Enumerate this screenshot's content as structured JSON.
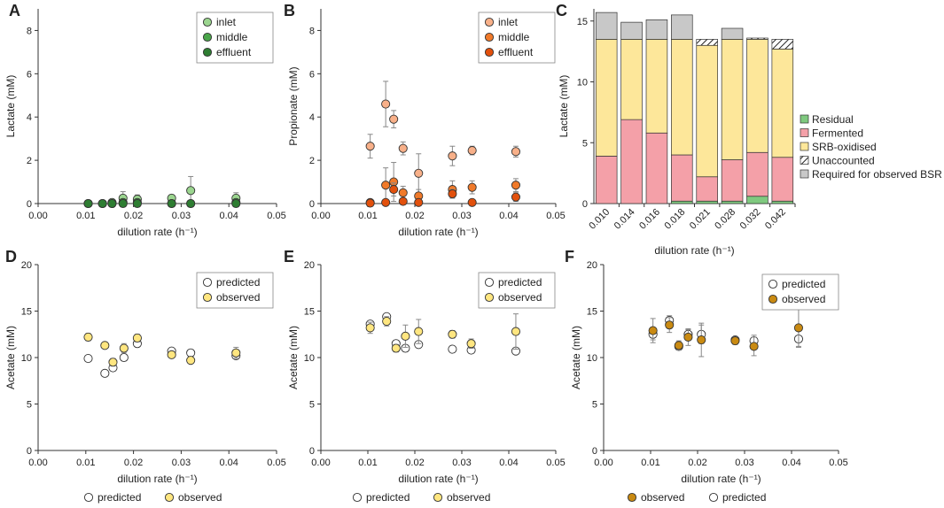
{
  "colors": {
    "inlet_lac": "#9bd58f",
    "middle_lac": "#4aa54a",
    "effluent_lac": "#2e7d32",
    "inlet_prop": "#f8b089",
    "middle_prop": "#f07a2a",
    "effluent_prop": "#e2500c",
    "residual": "#7fc97f",
    "fermented": "#f4a0a8",
    "srb": "#fde79a",
    "required": "#c8c8c8",
    "observed_de": "#ffe680",
    "observed_f": "#c98a12",
    "predicted": "#ffffff"
  },
  "chart_data": [
    {
      "id": "A",
      "letter": "A",
      "type": "scatter",
      "xlabel": "dilution rate (h⁻¹)",
      "ylabel": "Lactate (mM)",
      "xlim": [
        0,
        0.05
      ],
      "ylim": [
        0,
        9
      ],
      "xticks": [
        "0.00",
        "0.01",
        "0.02",
        "0.03",
        "0.04",
        "0.05"
      ],
      "yticks": [
        "0",
        "2",
        "4",
        "6",
        "8"
      ],
      "legend": {
        "position": "top-right",
        "entries": [
          "inlet",
          "middle",
          "effluent"
        ]
      },
      "series": [
        {
          "name": "inlet",
          "color": "inlet_lac",
          "x": [
            0.0105,
            0.0135,
            0.0155,
            0.0178,
            0.0208,
            0.028,
            0.032,
            0.0415
          ],
          "y": [
            0.0,
            0.0,
            0.05,
            0.25,
            0.2,
            0.25,
            0.6,
            0.25
          ],
          "err": [
            0,
            0,
            0.05,
            0.3,
            0.2,
            0.15,
            0.65,
            0.25
          ]
        },
        {
          "name": "middle",
          "color": "middle_lac",
          "x": [
            0.0105,
            0.0135,
            0.0155,
            0.0178,
            0.0208,
            0.028,
            0.032,
            0.0415
          ],
          "y": [
            0.0,
            0.0,
            0.0,
            0.05,
            0.05,
            0.0,
            0.0,
            0.05
          ],
          "err": [
            0,
            0,
            0,
            0.05,
            0.05,
            0,
            0,
            0.05
          ]
        },
        {
          "name": "effluent",
          "color": "effluent_lac",
          "x": [
            0.0105,
            0.0135,
            0.0155,
            0.0178,
            0.0208,
            0.028,
            0.032,
            0.0415
          ],
          "y": [
            0,
            0,
            0,
            0,
            0,
            0,
            0,
            0
          ],
          "err": [
            0,
            0,
            0,
            0,
            0,
            0,
            0,
            0
          ]
        }
      ]
    },
    {
      "id": "B",
      "letter": "B",
      "type": "scatter",
      "xlabel": "dilution rate (h⁻¹)",
      "ylabel": "Propionate (mM)",
      "xlim": [
        0,
        0.05
      ],
      "ylim": [
        0,
        9
      ],
      "xticks": [
        "0.00",
        "0.01",
        "0.02",
        "0.03",
        "0.04",
        "0.05"
      ],
      "yticks": [
        "0",
        "2",
        "4",
        "6",
        "8"
      ],
      "legend": {
        "position": "top-right",
        "entries": [
          "inlet",
          "middle",
          "effluent"
        ]
      },
      "series": [
        {
          "name": "inlet",
          "color": "inlet_prop",
          "x": [
            0.0105,
            0.0138,
            0.0155,
            0.0175,
            0.0208,
            0.028,
            0.0322,
            0.0415
          ],
          "y": [
            2.65,
            4.6,
            3.9,
            2.55,
            1.4,
            2.2,
            2.45,
            2.4
          ],
          "err": [
            0.55,
            1.05,
            0.4,
            0.3,
            0.9,
            0.45,
            0.2,
            0.25
          ]
        },
        {
          "name": "middle",
          "color": "middle_prop",
          "x": [
            0.0105,
            0.0138,
            0.0155,
            0.0175,
            0.0208,
            0.028,
            0.0322,
            0.0415
          ],
          "y": [
            0.05,
            0.85,
            1.0,
            0.5,
            0.35,
            0.65,
            0.75,
            0.85
          ],
          "err": [
            0.05,
            0.8,
            0.9,
            0.3,
            0.3,
            0.4,
            0.3,
            0.3
          ]
        },
        {
          "name": "effluent",
          "color": "effluent_prop",
          "x": [
            0.0105,
            0.0138,
            0.0155,
            0.0175,
            0.0208,
            0.028,
            0.0322,
            0.0415
          ],
          "y": [
            0.02,
            0.05,
            0.65,
            0.1,
            0.05,
            0.45,
            0.05,
            0.3
          ],
          "err": [
            0.02,
            0.05,
            0.3,
            0.1,
            0.05,
            0.2,
            0.05,
            0.2
          ]
        }
      ]
    },
    {
      "id": "C",
      "letter": "C",
      "type": "bar",
      "xlabel": "dilution rate (h⁻¹)",
      "ylabel": "Lactate (mM)",
      "ylim": [
        0,
        16
      ],
      "yticks": [
        "0",
        "5",
        "10",
        "15"
      ],
      "categories": [
        "0.010",
        "0.014",
        "0.016",
        "0.018",
        "0.021",
        "0.028",
        "0.032",
        "0.042"
      ],
      "legend": {
        "position": "right",
        "entries": [
          "Residual",
          "Fermented",
          "SRB-oxidised",
          "Unaccounted",
          "Required for observed BSR"
        ]
      },
      "series": [
        {
          "name": "Residual",
          "color": "residual",
          "values": [
            0.0,
            0.0,
            0.0,
            0.2,
            0.2,
            0.2,
            0.6,
            0.2
          ]
        },
        {
          "name": "Fermented",
          "color": "fermented",
          "values": [
            3.9,
            6.9,
            5.8,
            3.8,
            2.0,
            3.4,
            3.6,
            3.6
          ]
        },
        {
          "name": "SRB-oxidised",
          "color": "srb",
          "values": [
            9.6,
            6.6,
            7.7,
            9.5,
            10.8,
            9.9,
            9.3,
            8.9
          ]
        },
        {
          "name": "Unaccounted",
          "color": "hatch",
          "values": [
            0.0,
            0.0,
            0.0,
            0.0,
            0.5,
            0.0,
            0.1,
            0.8
          ]
        },
        {
          "name": "Required for observed BSR",
          "color": "required",
          "values": [
            2.2,
            1.4,
            1.6,
            2.0,
            0.0,
            0.9,
            0.0,
            0.0
          ]
        }
      ]
    },
    {
      "id": "D",
      "letter": "D",
      "type": "scatter",
      "xlabel": "dilution rate (h⁻¹)",
      "ylabel": "Acetate (mM)",
      "xlim": [
        0,
        0.05
      ],
      "ylim": [
        0,
        20
      ],
      "xticks": [
        "0.00",
        "0.01",
        "0.02",
        "0.03",
        "0.04",
        "0.05"
      ],
      "yticks": [
        "0",
        "5",
        "10",
        "15",
        "20"
      ],
      "legend": {
        "position": "top-right",
        "entries": [
          "predicted",
          "observed"
        ]
      },
      "bottom_legend": [
        "predicted",
        "observed"
      ],
      "series": [
        {
          "name": "predicted",
          "color": "predicted",
          "x": [
            0.0105,
            0.014,
            0.0157,
            0.018,
            0.0208,
            0.028,
            0.032,
            0.0415
          ],
          "y": [
            9.9,
            8.3,
            8.9,
            10.0,
            11.5,
            10.7,
            10.5,
            10.2
          ],
          "err": [
            0,
            0,
            0,
            0,
            0,
            0,
            0,
            0
          ]
        },
        {
          "name": "observed",
          "color": "observed_de",
          "x": [
            0.0105,
            0.014,
            0.0157,
            0.018,
            0.0208,
            0.028,
            0.032,
            0.0415
          ],
          "y": [
            12.2,
            11.3,
            9.5,
            11.0,
            12.1,
            10.3,
            9.7,
            10.5
          ],
          "err": [
            0.4,
            0.3,
            0.4,
            0.5,
            0.4,
            0.3,
            0.3,
            0.6
          ]
        }
      ]
    },
    {
      "id": "E",
      "letter": "E",
      "type": "scatter",
      "xlabel": "dilution rate (h⁻¹)",
      "ylabel": "Acetate (mM)",
      "xlim": [
        0,
        0.05
      ],
      "ylim": [
        0,
        20
      ],
      "xticks": [
        "0.00",
        "0.01",
        "0.02",
        "0.03",
        "0.04",
        "0.05"
      ],
      "yticks": [
        "0",
        "5",
        "10",
        "15",
        "20"
      ],
      "legend": {
        "position": "top-right",
        "entries": [
          "predicted",
          "observed"
        ]
      },
      "bottom_legend": [
        "predicted",
        "observed"
      ],
      "series": [
        {
          "name": "predicted",
          "color": "predicted",
          "x": [
            0.0105,
            0.014,
            0.016,
            0.018,
            0.0208,
            0.028,
            0.032,
            0.0415
          ],
          "y": [
            13.6,
            14.4,
            11.5,
            11.0,
            11.4,
            10.9,
            10.8,
            10.7
          ],
          "err": [
            0,
            0,
            0,
            0,
            0,
            0,
            0,
            0
          ]
        },
        {
          "name": "observed",
          "color": "observed_de",
          "x": [
            0.0105,
            0.014,
            0.016,
            0.018,
            0.0208,
            0.028,
            0.032,
            0.0415
          ],
          "y": [
            13.2,
            13.9,
            11.0,
            12.3,
            12.8,
            12.5,
            11.5,
            12.8
          ],
          "err": [
            0.6,
            0.5,
            0.4,
            1.2,
            1.3,
            0.4,
            0.5,
            1.9
          ]
        }
      ]
    },
    {
      "id": "F",
      "letter": "F",
      "type": "scatter",
      "xlabel": "dilution rate (h⁻¹)",
      "ylabel": "Acetate (mM)",
      "xlim": [
        0,
        0.05
      ],
      "ylim": [
        0,
        20
      ],
      "xticks": [
        "0.00",
        "0.01",
        "0.02",
        "0.03",
        "0.04",
        "0.05"
      ],
      "yticks": [
        "0",
        "5",
        "10",
        "15",
        "20"
      ],
      "legend": {
        "position": "top-right",
        "entries": [
          "predicted",
          "observed"
        ]
      },
      "bottom_legend": [
        "observed",
        "predicted"
      ],
      "series": [
        {
          "name": "predicted",
          "color": "predicted",
          "x": [
            0.0105,
            0.014,
            0.016,
            0.018,
            0.0208,
            0.028,
            0.032,
            0.0415
          ],
          "y": [
            12.5,
            14.0,
            11.2,
            12.5,
            12.5,
            11.9,
            11.8,
            12.0
          ],
          "err": [
            0.6,
            0.5,
            0.4,
            0.5,
            1.0,
            0.3,
            0.6,
            0.9
          ]
        },
        {
          "name": "observed",
          "color": "observed_f",
          "x": [
            0.0105,
            0.014,
            0.016,
            0.018,
            0.0208,
            0.028,
            0.032,
            0.0415
          ],
          "y": [
            12.9,
            13.5,
            11.3,
            12.2,
            11.9,
            11.8,
            11.2,
            13.2
          ],
          "err": [
            1.3,
            0.8,
            0.5,
            0.9,
            1.8,
            0.4,
            1.0,
            2.0
          ]
        }
      ]
    }
  ]
}
